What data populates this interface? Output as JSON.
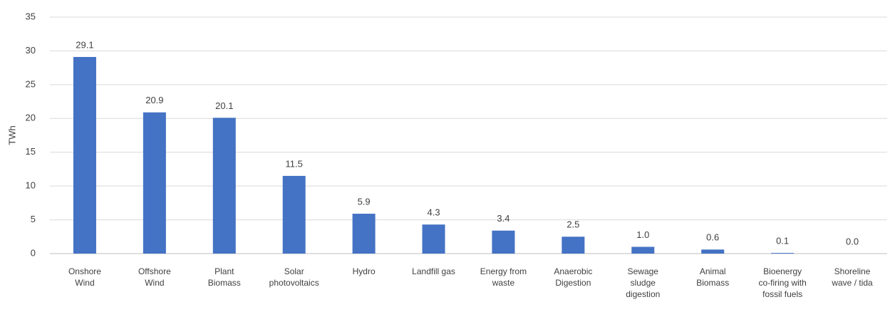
{
  "chart_data": {
    "type": "bar",
    "y_axis_label": "TWh",
    "categories": [
      "Onshore Wind",
      "Offshore Wind",
      "Plant Biomass",
      "Solar photovoltaics",
      "Hydro",
      "Landfill gas",
      "Energy from waste",
      "Anaerobic Digestion",
      "Sewage sludge digestion",
      "Animal Biomass",
      "Bioenergy co-firing with fossil fuels",
      "Shoreline wave / tida"
    ],
    "values": [
      29.1,
      20.9,
      20.1,
      11.5,
      5.9,
      4.3,
      3.4,
      2.5,
      1.0,
      0.6,
      0.1,
      0.0
    ],
    "value_labels": [
      "29.1",
      "20.9",
      "20.1",
      "11.5",
      "5.9",
      "4.3",
      "3.4",
      "2.5",
      "1.0",
      "0.6",
      "0.1",
      "0.0"
    ],
    "color": "#4472c4",
    "ylim": [
      0,
      35
    ],
    "yticks": [
      0,
      5,
      10,
      15,
      20,
      25,
      30,
      35
    ],
    "grid": true
  }
}
